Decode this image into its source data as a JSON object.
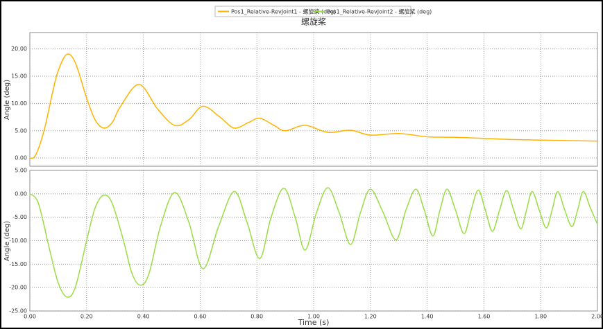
{
  "chart_data": [
    {
      "type": "line",
      "title": "螺旋桨",
      "ylabel": "Angle (deg)",
      "x": [
        0,
        0.02,
        0.05,
        0.08,
        0.1,
        0.13,
        0.16,
        0.2,
        0.23,
        0.26,
        0.29,
        0.32,
        0.385,
        0.45,
        0.51,
        0.56,
        0.61,
        0.67,
        0.72,
        0.77,
        0.81,
        0.86,
        0.9,
        0.97,
        1.05,
        1.13,
        1.2,
        1.3,
        1.4,
        1.5,
        1.6,
        1.7,
        1.8,
        1.9,
        2.0
      ],
      "series": [
        {
          "name": "Pos1_Relative-RevJoint1 - 螺旋桨 (deg)",
          "color": "#ffb300",
          "values": [
            0,
            0.5,
            5,
            12,
            16,
            19,
            17.5,
            11,
            7,
            5.5,
            6.5,
            9.5,
            13.5,
            9,
            6,
            7,
            9.5,
            7.5,
            5.5,
            6.5,
            7.3,
            6,
            5,
            6,
            4.7,
            5.1,
            4.2,
            4.5,
            3.9,
            3.8,
            3.6,
            3.4,
            3.3,
            3.2,
            3.1
          ]
        }
      ],
      "xlim": [
        0,
        2
      ],
      "ylim": [
        -1.5,
        23
      ],
      "yticks": [
        {
          "value": 0,
          "label": "0.00"
        },
        {
          "value": 5,
          "label": "5.00"
        },
        {
          "value": 10,
          "label": "10.00"
        },
        {
          "value": 15,
          "label": "15.00"
        },
        {
          "value": 20,
          "label": "20.00"
        }
      ],
      "grid": true
    },
    {
      "type": "line",
      "xlabel": "Time (s)",
      "ylabel": "Angle (deg)",
      "x": [
        0,
        0.03,
        0.07,
        0.1,
        0.13,
        0.16,
        0.2,
        0.23,
        0.26,
        0.29,
        0.33,
        0.36,
        0.39,
        0.42,
        0.46,
        0.51,
        0.56,
        0.61,
        0.665,
        0.72,
        0.765,
        0.81,
        0.85,
        0.895,
        0.935,
        0.97,
        1.01,
        1.05,
        1.09,
        1.13,
        1.165,
        1.2,
        1.245,
        1.29,
        1.325,
        1.36,
        1.39,
        1.42,
        1.445,
        1.47,
        1.5,
        1.53,
        1.555,
        1.58,
        1.605,
        1.63,
        1.655,
        1.68,
        1.705,
        1.73,
        1.75,
        1.77,
        1.795,
        1.82,
        1.84,
        1.86,
        1.885,
        1.91,
        1.93,
        1.95,
        1.975,
        2.0
      ],
      "series": [
        {
          "name": "Pos1_Relative-RevJoint2 - 螺旋桨 (deg)",
          "color": "#99dd44",
          "values": [
            0,
            -2,
            -12,
            -19,
            -22,
            -20,
            -10,
            -3,
            -0.3,
            -2,
            -10,
            -17,
            -19.5,
            -17,
            -7,
            0.3,
            -6,
            -16,
            -7,
            0.5,
            -6,
            -13.8,
            -5,
            1.2,
            -5,
            -12,
            -4,
            1.3,
            -4,
            -10.8,
            -4,
            1,
            -4,
            -9.8,
            -3.5,
            1,
            -3.5,
            -9,
            -3.5,
            1,
            -3.5,
            -8.5,
            -3.5,
            0.8,
            -3.5,
            -8,
            -3.5,
            0.7,
            -3.5,
            -7.5,
            -3.5,
            0.5,
            -3.5,
            -7.3,
            -3.5,
            0.5,
            -3.5,
            -7,
            -3.5,
            0.5,
            -3,
            -6.5
          ]
        }
      ],
      "xlim": [
        0,
        2
      ],
      "ylim": [
        -25,
        5
      ],
      "xticks": [
        {
          "value": 0,
          "label": "0.00"
        },
        {
          "value": 0.2,
          "label": "0.20"
        },
        {
          "value": 0.4,
          "label": "0.40"
        },
        {
          "value": 0.6,
          "label": "0.60"
        },
        {
          "value": 0.8,
          "label": "0.80"
        },
        {
          "value": 1,
          "label": "1.00"
        },
        {
          "value": 1.2,
          "label": "1.20"
        },
        {
          "value": 1.4,
          "label": "1.40"
        },
        {
          "value": 1.6,
          "label": "1.60"
        },
        {
          "value": 1.8,
          "label": "1.80"
        },
        {
          "value": 2,
          "label": "2.00"
        }
      ],
      "yticks": [
        {
          "value": -25,
          "label": "-25.00"
        },
        {
          "value": -20,
          "label": "-20.00"
        },
        {
          "value": -15,
          "label": "-15.00"
        },
        {
          "value": -10,
          "label": "-10.00"
        },
        {
          "value": -5,
          "label": "-5.00"
        },
        {
          "value": 0,
          "label": "0.00"
        },
        {
          "value": 5,
          "label": "5.00"
        }
      ],
      "grid": true
    }
  ]
}
